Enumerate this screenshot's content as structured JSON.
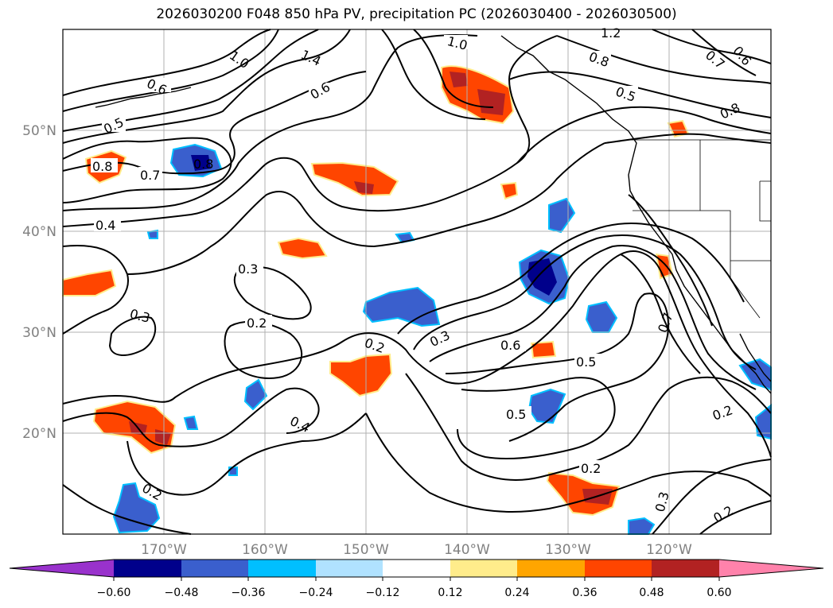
{
  "title": "2026030200 F048 850 hPa PV, precipitation PC (2026030400 - 2026030500)",
  "lon_ticks": [
    "170°W",
    "160°W",
    "150°W",
    "140°W",
    "130°W",
    "120°W"
  ],
  "lat_ticks": [
    "50°N",
    "40°N",
    "30°N",
    "20°N"
  ],
  "colorbar": {
    "colors": [
      "#9932cc",
      "#00008b",
      "#3a5fcd",
      "#00bfff",
      "#b0e2ff",
      "#ffffff",
      "#ffec8b",
      "#ffa500",
      "#ff4500",
      "#b22222",
      "#ff82ab"
    ],
    "tick_labels": [
      "−0.60",
      "−0.48",
      "−0.36",
      "−0.24",
      "−0.12",
      "0.12",
      "0.24",
      "0.36",
      "0.48",
      "0.60"
    ]
  },
  "contour_labels": [
    "1.2",
    "1.0",
    "1.0",
    "1.4",
    "0.8",
    "0.6",
    "0.6",
    "0.5",
    "0.7",
    "0.6",
    "0.5",
    "0.8",
    "0.8",
    "0.8",
    "0.7",
    "0.4",
    "0.3",
    "0.3",
    "0.2",
    "0.2",
    "0.3",
    "0.4",
    "0.6",
    "0.5",
    "0.5",
    "0.7",
    "0.2",
    "0.2",
    "0.2",
    "0.3",
    "0.2"
  ]
}
